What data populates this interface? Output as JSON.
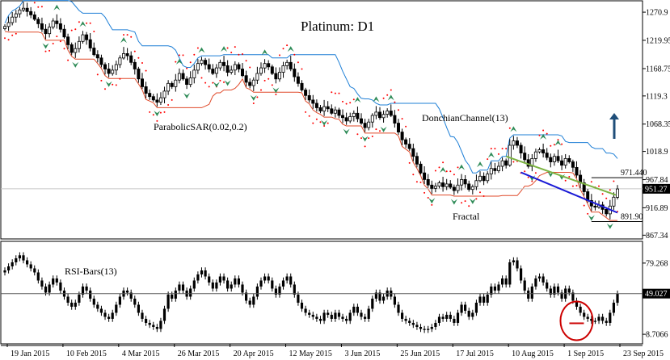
{
  "chart_data": [
    {
      "type": "candlestick",
      "title": "Platinum: D1",
      "y_ticks": [
        "1270.9",
        "1219.95",
        "1168.75",
        "1119.3",
        "1068.35",
        "1018.9",
        "967.84",
        "916.89",
        "867.34"
      ],
      "ylim": [
        862,
        1290
      ],
      "x_ticks": [
        "19 Jan 2015",
        "10 Feb 2015",
        "4 Mar 2015",
        "26 Mar 2015",
        "20 Apr 2015",
        "12 May 2015",
        "3 Jun 2015",
        "25 Jun 2015",
        "17 Jul 2015",
        "10 Aug 2015",
        "1 Sep 2015",
        "23 Sep 2015"
      ],
      "current_price": "951.27",
      "levels": [
        {
          "label": "971.440",
          "value": 971.44
        },
        {
          "label": "891.90",
          "value": 891.9
        }
      ],
      "close": [
        1245,
        1252,
        1262,
        1268,
        1275,
        1278,
        1272,
        1266,
        1258,
        1250,
        1240,
        1232,
        1244,
        1255,
        1250,
        1240,
        1226,
        1212,
        1198,
        1205,
        1218,
        1230,
        1221,
        1206,
        1194,
        1188,
        1176,
        1168,
        1160,
        1166,
        1176,
        1188,
        1196,
        1192,
        1180,
        1168,
        1150,
        1136,
        1124,
        1118,
        1112,
        1108,
        1116,
        1128,
        1142,
        1136,
        1148,
        1160,
        1150,
        1140,
        1152,
        1166,
        1178,
        1184,
        1176,
        1168,
        1160,
        1170,
        1180,
        1174,
        1162,
        1166,
        1176,
        1168,
        1156,
        1144,
        1138,
        1148,
        1160,
        1170,
        1178,
        1172,
        1160,
        1150,
        1162,
        1174,
        1180,
        1168,
        1154,
        1142,
        1130,
        1120,
        1112,
        1106,
        1098,
        1092,
        1100,
        1096,
        1088,
        1094,
        1084,
        1080,
        1074,
        1082,
        1088,
        1078,
        1070,
        1062,
        1072,
        1084,
        1090,
        1080,
        1086,
        1092,
        1084,
        1070,
        1054,
        1040,
        1032,
        1024,
        1010,
        996,
        980,
        968,
        958,
        952,
        956,
        962,
        955,
        960,
        954,
        948,
        958,
        968,
        960,
        950,
        955,
        966,
        974,
        966,
        978,
        988,
        984,
        992,
        1002,
        994,
        1030,
        1038,
        1030,
        1016,
        1004,
        992,
        1006,
        1018,
        1022,
        1016,
        1008,
        1000,
        1010,
        1002,
        994,
        1006,
        1000,
        990,
        976,
        962,
        946,
        930,
        920,
        918,
        922,
        914,
        906,
        920,
        936,
        951
      ],
      "series": [
        {
          "name": "ParabolicSAR(0.02,0.2)"
        },
        {
          "name": "DonchianChannel(13)"
        },
        {
          "name": "Fractal"
        }
      ]
    },
    {
      "type": "bar",
      "title": "RSI-Bars(13)",
      "y_ticks": [
        "79.268",
        "49.027",
        "8.7066"
      ],
      "ylim": [
        0,
        100
      ],
      "current_value": "49.027",
      "values": [
        72,
        76,
        80,
        84,
        87,
        82,
        78,
        74,
        70,
        62,
        56,
        50,
        58,
        64,
        60,
        52,
        46,
        40,
        36,
        40,
        48,
        56,
        52,
        44,
        38,
        34,
        30,
        26,
        24,
        30,
        38,
        46,
        52,
        50,
        44,
        38,
        30,
        24,
        20,
        18,
        16,
        14,
        22,
        34,
        48,
        44,
        52,
        58,
        52,
        46,
        54,
        62,
        68,
        72,
        66,
        60,
        54,
        60,
        66,
        62,
        54,
        58,
        64,
        58,
        50,
        42,
        38,
        46,
        56,
        62,
        66,
        62,
        54,
        48,
        56,
        62,
        66,
        58,
        48,
        40,
        34,
        30,
        28,
        26,
        24,
        22,
        30,
        28,
        24,
        30,
        26,
        24,
        22,
        30,
        36,
        30,
        26,
        24,
        34,
        44,
        50,
        42,
        46,
        52,
        46,
        38,
        30,
        24,
        22,
        20,
        18,
        16,
        14,
        13,
        14,
        16,
        20,
        26,
        24,
        28,
        24,
        20,
        30,
        38,
        32,
        26,
        30,
        40,
        46,
        40,
        48,
        56,
        52,
        58,
        64,
        58,
        80,
        82,
        74,
        62,
        52,
        44,
        56,
        64,
        66,
        60,
        54,
        48,
        56,
        50,
        44,
        54,
        50,
        42,
        36,
        30,
        26,
        24,
        22,
        22,
        26,
        22,
        20,
        30,
        40,
        49
      ],
      "series": [
        {
          "name": "RSI-Bars(13)"
        }
      ]
    }
  ],
  "annotations": {
    "sar_label": "ParabolicSAR(0.02,0.2)",
    "donchian_label": "DonchianChannel(13)",
    "fractal_label": "Fractal",
    "rsi_label": "RSI-Bars(13)"
  },
  "colors": {
    "candles": "#000000",
    "sar": "#ff0000",
    "donchian_upper": "#1e7fd6",
    "donchian_lower": "#e04a2a",
    "fractal": "#2e8b57",
    "trend_upper": "#7cb342",
    "trend_lower": "#1a1ad6",
    "arrow": "#1f4e79",
    "circle": "#cc0000",
    "current_tag": "#000000"
  }
}
